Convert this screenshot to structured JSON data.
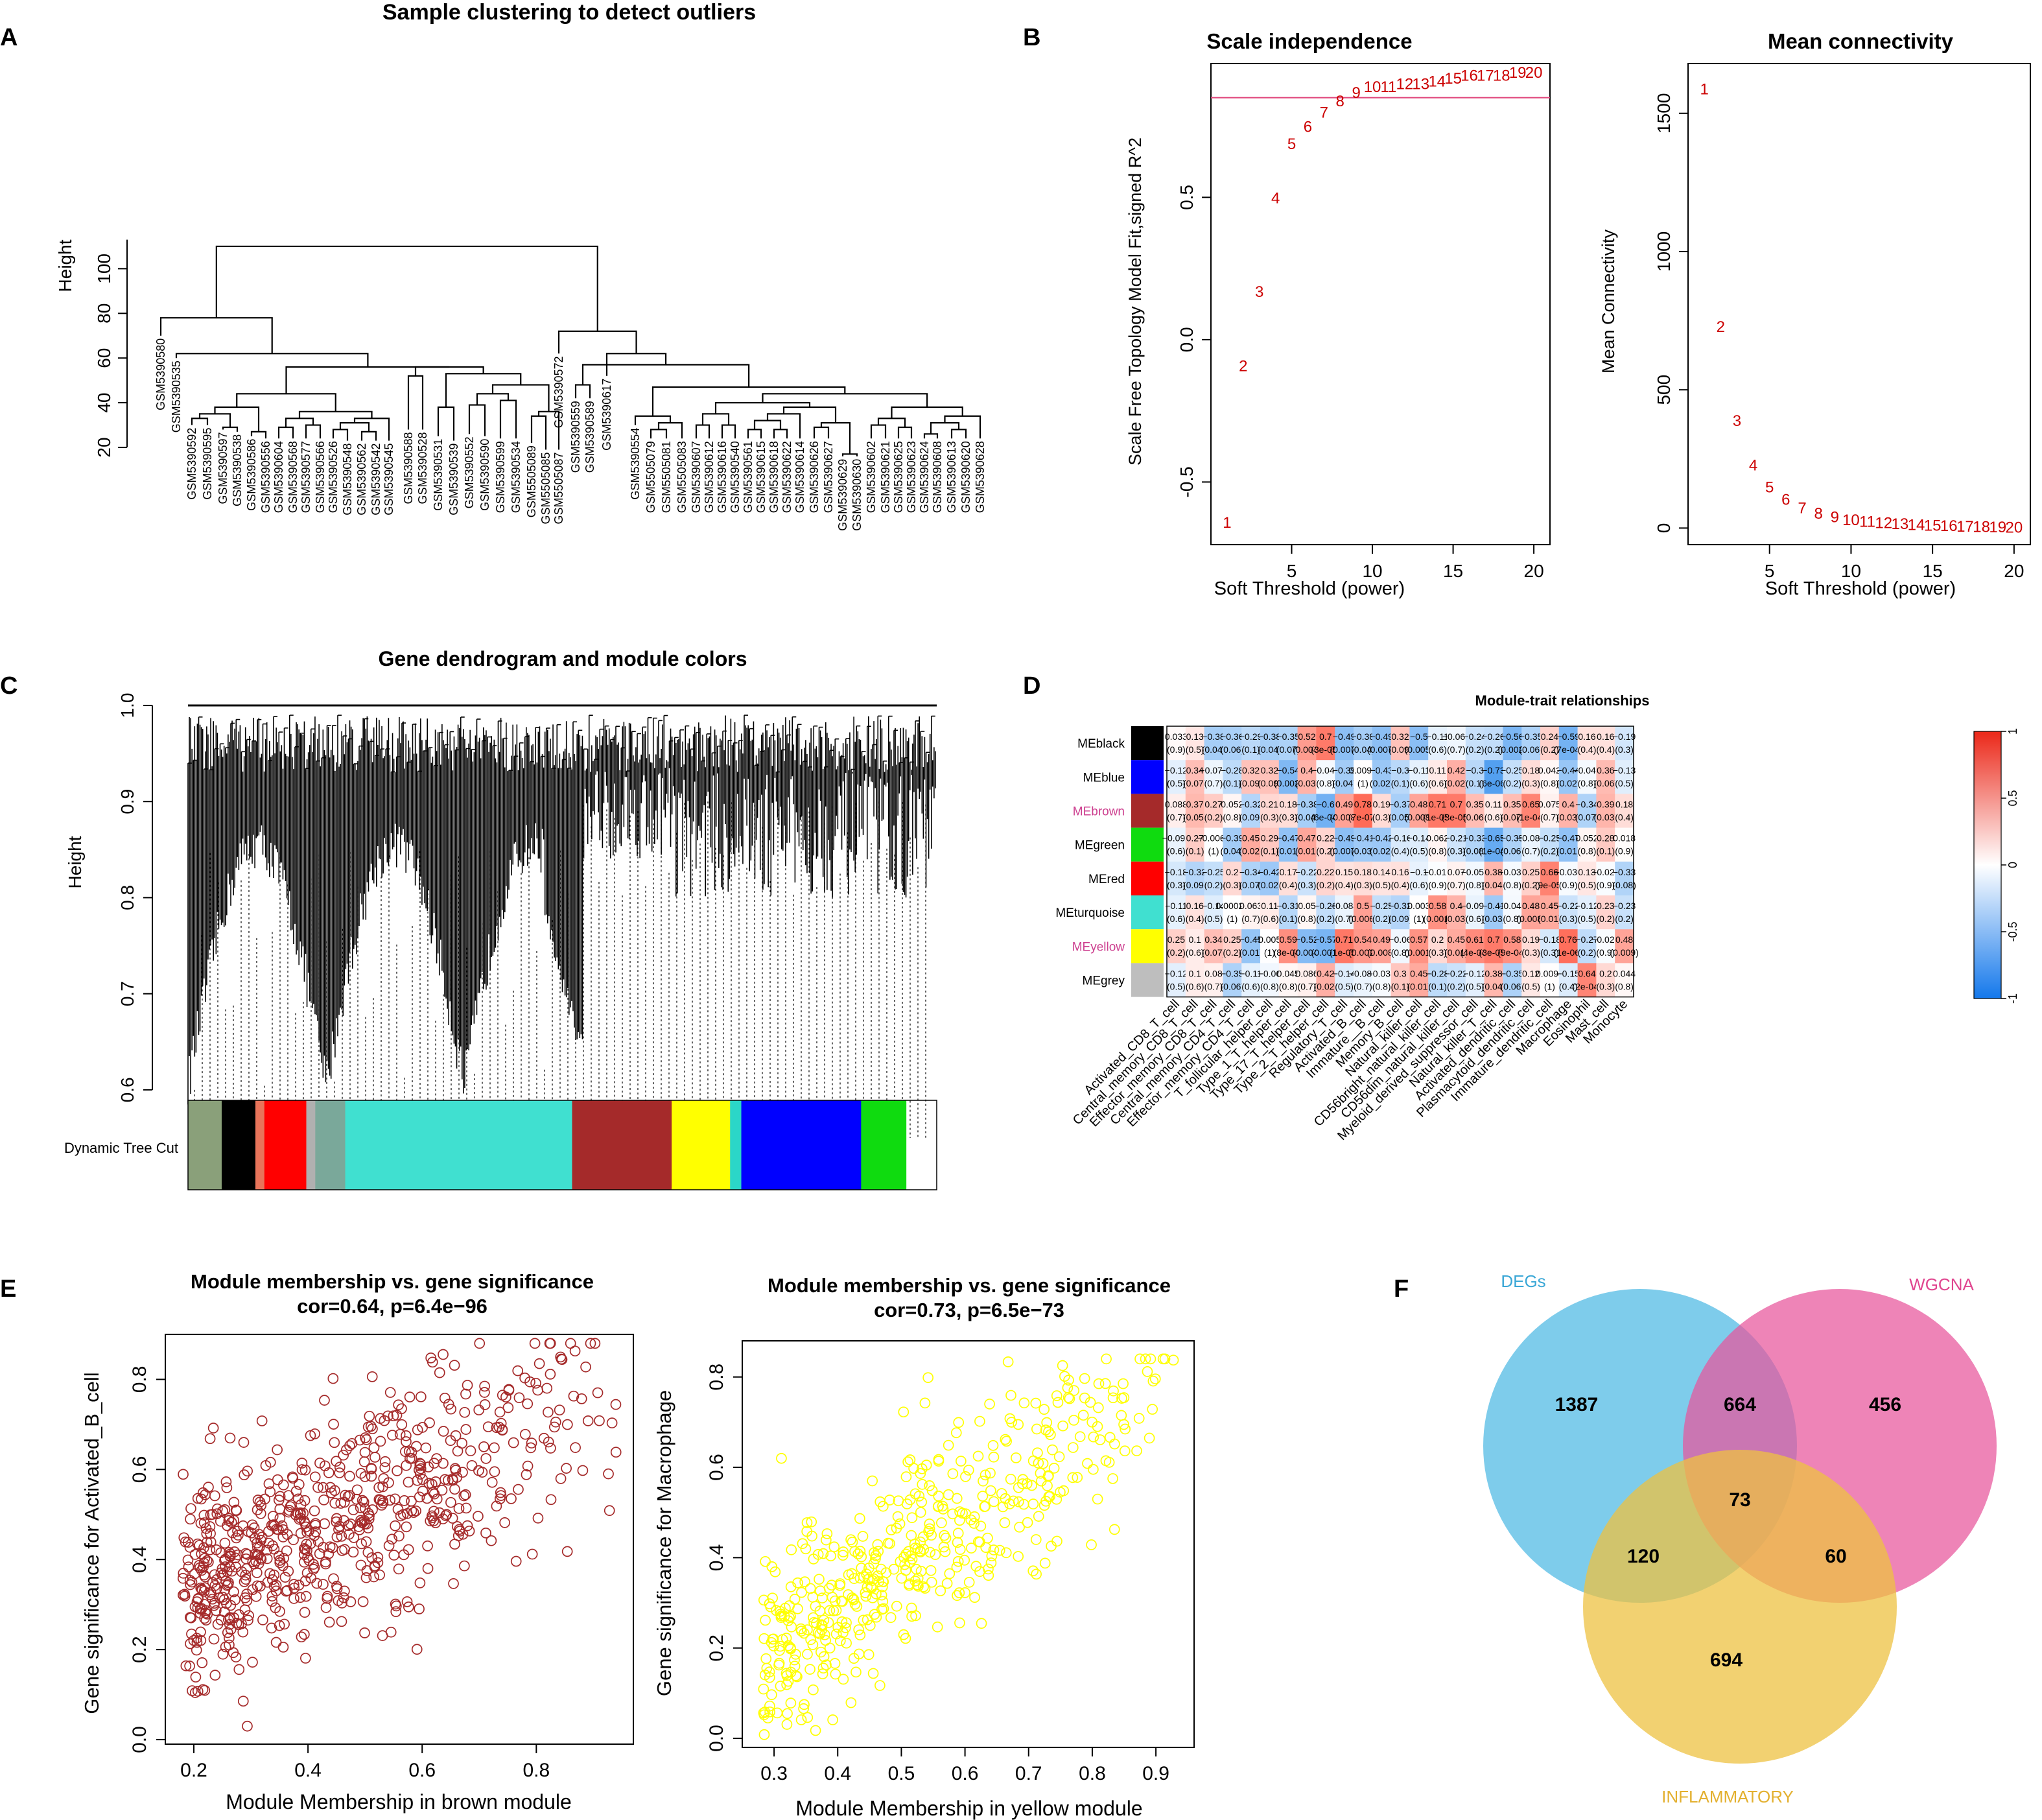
{
  "panel_labels": [
    "A",
    "B",
    "C",
    "D",
    "E",
    "F"
  ],
  "colors": {
    "axis": "#000000",
    "red_label": "#cc0000",
    "brown": "#a52a2a",
    "yellow": "#ffff00",
    "cutoff_line": "#e0457b",
    "venn_degs": "#4cb8e3",
    "venn_wgcna": "#e8559b",
    "venn_inflam": "#eec142"
  },
  "chart_data": [
    {
      "id": "A",
      "type": "dendrogram",
      "title": "Sample clustering to detect outliers",
      "ylabel": "Height",
      "yticks": [
        20,
        40,
        60,
        80,
        100
      ],
      "ylim": [
        15,
        113
      ],
      "leaves_left": [
        "GSM5390580",
        "GSM5390535",
        "GSM5390592",
        "GSM5390595",
        "GSM5390597",
        "GSM5390538",
        "GSM5390586",
        "GSM5390556",
        "GSM5390604",
        "GSM5390568",
        "GSM5390577",
        "GSM5390566",
        "GSM5390526",
        "GSM5390548",
        "GSM5390562",
        "GSM5390542",
        "GSM5390545",
        "GSM5390588",
        "GSM5390528",
        "GSM5390531",
        "GSM5390539",
        "GSM5390552",
        "GSM5390590",
        "GSM5390599",
        "GSM5390534",
        "GSM5505089",
        "GSM5505085",
        "GSM5505087"
      ],
      "leaves_right": [
        "GSM5390572",
        "GSM5390559",
        "GSM5390589",
        "GSM5390617",
        "GSM5390554",
        "GSM5505079",
        "GSM5505081",
        "GSM5505083",
        "GSM5390607",
        "GSM5390612",
        "GSM5390616",
        "GSM5390540",
        "GSM5390561",
        "GSM5390615",
        "GSM5390618",
        "GSM5390622",
        "GSM5390614",
        "GSM5390626",
        "GSM5390627",
        "GSM5390629",
        "GSM5390630",
        "GSM5390602",
        "GSM5390621",
        "GSM5390625",
        "GSM5390623",
        "GSM5390624",
        "GSM5390608",
        "GSM5390613",
        "GSM5390620",
        "GSM5390628"
      ]
    },
    {
      "id": "B1",
      "type": "scatter",
      "title": "Scale independence",
      "xlabel": "Soft Threshold (power)",
      "ylabel": "Scale Free Topology Model Fit,signed R^2",
      "xlim": [
        0,
        21
      ],
      "ylim": [
        -0.72,
        0.97
      ],
      "xticks": [
        5,
        10,
        15,
        20
      ],
      "yticks": [
        -0.5,
        0.0,
        0.5
      ],
      "cutoff": 0.85,
      "points": [
        [
          1,
          -0.64
        ],
        [
          2,
          -0.09
        ],
        [
          3,
          0.17
        ],
        [
          4,
          0.5
        ],
        [
          5,
          0.69
        ],
        [
          6,
          0.75
        ],
        [
          7,
          0.8
        ],
        [
          8,
          0.84
        ],
        [
          9,
          0.87
        ],
        [
          10,
          0.89
        ],
        [
          11,
          0.89
        ],
        [
          12,
          0.9
        ],
        [
          13,
          0.9
        ],
        [
          14,
          0.91
        ],
        [
          15,
          0.92
        ],
        [
          16,
          0.93
        ],
        [
          17,
          0.93
        ],
        [
          18,
          0.93
        ],
        [
          19,
          0.94
        ],
        [
          20,
          0.94
        ]
      ]
    },
    {
      "id": "B2",
      "type": "scatter",
      "title": "Mean connectivity",
      "xlabel": "Soft Threshold (power)",
      "ylabel": "Mean Connectivity",
      "xlim": [
        0,
        21
      ],
      "ylim": [
        -60,
        1680
      ],
      "xticks": [
        5,
        10,
        15,
        20
      ],
      "yticks": [
        0,
        500,
        1000,
        1500
      ],
      "points": [
        [
          1,
          1590
        ],
        [
          2,
          730
        ],
        [
          3,
          390
        ],
        [
          4,
          230
        ],
        [
          5,
          150
        ],
        [
          6,
          105
        ],
        [
          7,
          75
        ],
        [
          8,
          55
        ],
        [
          9,
          42
        ],
        [
          10,
          32
        ],
        [
          11,
          26
        ],
        [
          12,
          21
        ],
        [
          13,
          17
        ],
        [
          14,
          14
        ],
        [
          15,
          12
        ],
        [
          16,
          10
        ],
        [
          17,
          8
        ],
        [
          18,
          7
        ],
        [
          19,
          6
        ],
        [
          20,
          5
        ]
      ]
    },
    {
      "id": "C",
      "type": "dendrogram",
      "title": "Gene dendrogram and module colors",
      "ylabel": "Height",
      "yticks": [
        "0.6",
        "0.7",
        "0.8",
        "0.9",
        "1.0"
      ],
      "ylim": [
        0.55,
        1.0
      ],
      "colorbar_label": "Dynamic Tree Cut",
      "colorbar": [
        {
          "color": "#8aa07a",
          "w": 0.045
        },
        {
          "color": "#000000",
          "w": 0.045
        },
        {
          "color": "#e8745a",
          "w": 0.012
        },
        {
          "color": "#ff0000",
          "w": 0.056
        },
        {
          "color": "#b0b0b0",
          "w": 0.012
        },
        {
          "color": "#7aa89a",
          "w": 0.04
        },
        {
          "color": "#40e0d0",
          "w": 0.303
        },
        {
          "color": "#a52a2a",
          "w": 0.133
        },
        {
          "color": "#ffff00",
          "w": 0.078
        },
        {
          "color": "#2bd6c8",
          "w": 0.015
        },
        {
          "color": "#0000ff",
          "w": 0.16
        },
        {
          "color": "#0fdb0f",
          "w": 0.06
        }
      ]
    },
    {
      "id": "D",
      "type": "heatmap",
      "title": "Module-trait relationships",
      "rows": [
        "MEblack",
        "MEblue",
        "MEbrown",
        "MEgreen",
        "MEred",
        "MEturquoise",
        "MEyellow",
        "MEgrey"
      ],
      "row_colors": [
        "#000000",
        "#0000ff",
        "#a52a2a",
        "#0fdb0f",
        "#ff0000",
        "#40e0d0",
        "#ffff00",
        "#bebebe"
      ],
      "row_label_colors": [
        "#000000",
        "#000000",
        "#cd3f8f",
        "#000000",
        "#000000",
        "#000000",
        "#cd3f8f",
        "#000000"
      ],
      "cols": [
        "Activated_CD8_T_cell",
        "Central_memory_CD8_T_cell",
        "Effector_memory_CD8_T_cell",
        "Central_memory_CD4_T_cell",
        "Effector_memory_CD4_T_cell",
        "T_follicular_helper_cell",
        "Type_1_T_helper_cell",
        "Type_17_T_helper_cell",
        "Type_2_T_helper_cell",
        "Regulatory_T_cell",
        "Activated_B_cell",
        "Immature__B_cell",
        "Memory_B_cell",
        "Natural_killer_cell",
        "CD56bright_natural_killer_cell",
        "CD56dim_natural_killer_cell",
        "Myeloid_derived_suppressor_cell",
        "Natural_killer_T_cell",
        "Activated_dendritic_cell",
        "Plasmacytoid_dendritic_cell",
        "Immature_dendritic_cell",
        "Macrophage",
        "Eosinophil",
        "Mast_cell",
        "Monocyte"
      ],
      "values": [
        [
          0.033,
          0.13,
          -0.38,
          -0.36,
          -0.29,
          -0.38,
          -0.35,
          0.52,
          0.7,
          -0.49,
          -0.38,
          -0.49,
          0.32,
          -0.5,
          -0.11,
          -0.068,
          -0.24,
          -0.26,
          -0.56,
          -0.35,
          0.24,
          -0.59,
          0.16,
          0.16,
          -0.19
        ],
        [
          -0.12,
          0.34,
          -0.078,
          -0.28,
          0.32,
          0.32,
          -0.54,
          0.4,
          -0.043,
          -0.39,
          0.0093,
          -0.43,
          -0.3,
          -0.11,
          0.11,
          0.42,
          -0.3,
          -0.73,
          -0.25,
          0.18,
          0.042,
          -0.44,
          -0.048,
          0.36,
          -0.13
        ],
        [
          0.088,
          0.37,
          0.27,
          0.052,
          -0.32,
          0.21,
          0.18,
          -0.38,
          -0.6,
          0.49,
          0.78,
          0.19,
          -0.37,
          0.48,
          0.71,
          0.7,
          0.35,
          0.11,
          0.35,
          0.65,
          0.075,
          0.4,
          -0.34,
          0.39,
          0.18
        ],
        [
          -0.092,
          0.27,
          -0.0069,
          -0.39,
          0.45,
          0.29,
          -0.47,
          0.47,
          0.22,
          -0.49,
          -0.41,
          -0.42,
          -0.16,
          -0.14,
          0.062,
          -0.21,
          -0.33,
          -0.65,
          -0.35,
          -0.084,
          -0.25,
          -0.47,
          0.052,
          0.28,
          0.018
        ],
        [
          -0.18,
          -0.32,
          -0.25,
          0.2,
          -0.34,
          -0.42,
          0.17,
          -0.22,
          0.22,
          0.15,
          0.18,
          0.14,
          0.16,
          -0.1,
          -0.016,
          0.07,
          -0.057,
          0.38,
          -0.039,
          0.25,
          0.66,
          -0.036,
          0.13,
          -0.025,
          -0.33
        ],
        [
          -0.11,
          0.16,
          -0.14,
          0.00022,
          0.063,
          0.11,
          -0.31,
          0.05,
          -0.26,
          -0.084,
          0.5,
          -0.25,
          -0.32,
          0.003,
          0.58,
          0.4,
          -0.092,
          -0.41,
          -0.046,
          0.48,
          0.45,
          -0.22,
          -0.12,
          0.23,
          -0.23
        ],
        [
          0.25,
          0.1,
          0.34,
          0.25,
          -0.45,
          -0.0058,
          0.59,
          -0.52,
          -0.57,
          0.71,
          0.54,
          0.49,
          -0.06,
          0.57,
          0.2,
          0.45,
          0.61,
          0.7,
          0.58,
          0.19,
          -0.18,
          0.76,
          -0.27,
          -0.028,
          0.48
        ],
        [
          -0.12,
          0.1,
          0.08,
          -0.35,
          -0.11,
          -0.06,
          0.045,
          0.086,
          0.42,
          -0.14,
          -0.085,
          -0.037,
          0.3,
          0.45,
          -0.28,
          -0.22,
          -0.12,
          0.38,
          -0.35,
          0.12,
          0.0094,
          -0.15,
          0.64,
          0.2,
          0.044
        ]
      ],
      "pvalues": [
        [
          "(0.9)",
          "(0.5)",
          "(0.04)",
          "(0.06)",
          "(0.1)",
          "(0.04)",
          "(0.07)",
          "(0.004)",
          "(3e-05)",
          "(0.007)",
          "(0.04)",
          "(0.007)",
          "(0.09)",
          "(0.005)",
          "(0.6)",
          "(0.7)",
          "(0.2)",
          "(0.2)",
          "(0.002)",
          "(0.06)",
          "(0.2)",
          "(7e-04)",
          "(0.4)",
          "(0.4)",
          "(0.3)"
        ],
        [
          "(0.5)",
          "(0.07)",
          "(0.7)",
          "(0.1)",
          "(0.09)",
          "(0.09)",
          "(0.002)",
          "(0.03)",
          "(0.8)",
          "(0.04)",
          "(1)",
          "(0.02)",
          "(0.1)",
          "(0.6)",
          "(0.6)",
          "(0.02)",
          "(0.1)",
          "(6e-06)",
          "(0.2)",
          "(0.3)",
          "(0.8)",
          "(0.02)",
          "(0.8)",
          "(0.06)",
          "(0.5)"
        ],
        [
          "(0.7)",
          "(0.05)",
          "(0.2)",
          "(0.8)",
          "(0.09)",
          "(0.3)",
          "(0.3)",
          "(0.04)",
          "(6e-04)",
          "(0.008)",
          "(7e-07)",
          "(0.3)",
          "(0.05)",
          "(0.008)",
          "(1e-05)",
          "(3e-05)",
          "(0.06)",
          "(0.6)",
          "(0.07)",
          "(1e-04)",
          "(0.7)",
          "(0.03)",
          "(0.07)",
          "(0.03)",
          "(0.4)"
        ],
        [
          "(0.6)",
          "(0.1)",
          "(1)",
          "(0.04)",
          "(0.02)",
          "(0.1)",
          "(0.01)",
          "(0.01)",
          "(0.2)",
          "(0.007)",
          "(0.03)",
          "(0.02)",
          "(0.4)",
          "(0.5)",
          "(0.8)",
          "(0.3)",
          "(0.08)",
          "(1e-04)",
          "(0.06)",
          "(0.7)",
          "(0.2)",
          "(0.01)",
          "(0.8)",
          "(0.1)",
          "(0.9)"
        ],
        [
          "(0.3)",
          "(0.09)",
          "(0.2)",
          "(0.3)",
          "(0.07)",
          "(0.02)",
          "(0.4)",
          "(0.3)",
          "(0.2)",
          "(0.4)",
          "(0.3)",
          "(0.5)",
          "(0.4)",
          "(0.6)",
          "(0.9)",
          "(0.7)",
          "(0.8)",
          "(0.04)",
          "(0.8)",
          "(0.2)",
          "(9e-05)",
          "(0.9)",
          "(0.5)",
          "(0.9)",
          "(0.08)"
        ],
        [
          "(0.6)",
          "(0.4)",
          "(0.5)",
          "(1)",
          "(0.7)",
          "(0.6)",
          "(0.1)",
          "(0.8)",
          "(0.2)",
          "(0.7)",
          "(0.006)",
          "(0.2)",
          "(0.09)",
          "(1)",
          "(0.001)",
          "(0.03)",
          "(0.6)",
          "(0.03)",
          "(0.8)",
          "(0.008)",
          "(0.01)",
          "(0.3)",
          "(0.5)",
          "(0.2)",
          "(0.2)"
        ],
        [
          "(0.2)",
          "(0.6)",
          "(0.07)",
          "(0.2)",
          "(0.01)",
          "(1)",
          "(8e-04)",
          "(0.004)",
          "(0.001)",
          "(1e-05)",
          "(0.002)",
          "(0.008)",
          "(0.8)",
          "(0.001)",
          "(0.3)",
          "(0.01)",
          "(4e-04)",
          "(3e-05)",
          "(9e-04)",
          "(0.3)",
          "(0.3)",
          "(1e-06)",
          "(0.2)",
          "(0.9)",
          "(0.009)"
        ],
        [
          "(0.5)",
          "(0.6)",
          "(0.7)",
          "(0.06)",
          "(0.6)",
          "(0.8)",
          "(0.8)",
          "(0.7)",
          "(0.02)",
          "(0.5)",
          "(0.7)",
          "(0.8)",
          "(0.1)",
          "(0.01)",
          "(0.1)",
          "(0.2)",
          "(0.5)",
          "(0.04)",
          "(0.06)",
          "(0.5)",
          "(1)",
          "(0.4)",
          "(2e-04)",
          "(0.3)",
          "(0.8)"
        ]
      ],
      "legend_ticks": [
        "1",
        "0.5",
        "0",
        "-0.5",
        "-1"
      ],
      "value_range": [
        -1,
        1
      ]
    },
    {
      "id": "E1",
      "type": "scatter",
      "title": "Module membership vs. gene significance",
      "subtitle": "cor=0.64, p=6.4e−96",
      "xlabel": "Module Membership in brown module",
      "ylabel": "Gene significance for  Activated_B_cell",
      "xlim": [
        0.15,
        0.97
      ],
      "ylim": [
        -0.01,
        0.9
      ],
      "xticks": [
        "0.2",
        "0.4",
        "0.6",
        "0.8"
      ],
      "yticks": [
        "0.0",
        "0.2",
        "0.4",
        "0.6",
        "0.8"
      ],
      "n_points": 700,
      "color": "#a52a2a"
    },
    {
      "id": "E2",
      "type": "scatter",
      "title": "Module membership vs. gene significance",
      "subtitle": "cor=0.73, p=6.5e−73",
      "xlabel": "Module Membership in yellow module",
      "ylabel": "Gene significance for  Macrophage",
      "xlim": [
        0.25,
        0.96
      ],
      "ylim": [
        -0.02,
        0.88
      ],
      "xticks": [
        "0.3",
        "0.4",
        "0.5",
        "0.6",
        "0.7",
        "0.8",
        "0.9"
      ],
      "yticks": [
        "0.0",
        "0.2",
        "0.4",
        "0.6",
        "0.8"
      ],
      "n_points": 480,
      "color": "#ffff00"
    },
    {
      "id": "F",
      "type": "venn",
      "sets": [
        "DEGs",
        "WGCNA",
        "INFLAMMATORY"
      ],
      "regions": {
        "degs_only": "1387",
        "wgcna_only": "456",
        "inflam_only": "694",
        "degs_wgcna": "664",
        "degs_inflam": "120",
        "wgcna_inflam": "60",
        "all": "73"
      }
    }
  ]
}
